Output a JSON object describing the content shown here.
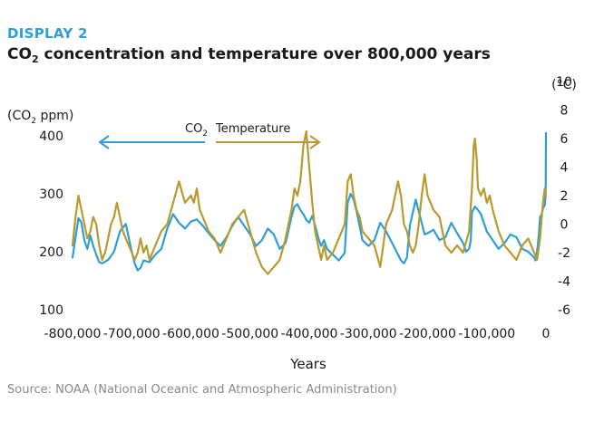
{
  "display_label": "DISPLAY 2",
  "title_parts": {
    "prefix": "CO",
    "subscript": "2",
    "suffix": " concentration and temperature over 800,000 years"
  },
  "source": "Source: NOAA (National Oceanic and Atmospheric Administration)",
  "colors": {
    "co2": "#2f9ed6",
    "temperature": "#b89a2e",
    "accent": "#2f9ed6"
  },
  "chart_data": {
    "type": "line",
    "xlabel": "Years",
    "y_left_label": {
      "prefix": "(CO",
      "subscript": "2",
      "suffix": " ppm)"
    },
    "y_right_label": "(°C)",
    "xlim": [
      -800000,
      0
    ],
    "ylim_left": [
      100,
      400
    ],
    "ylim_right": [
      -6,
      10
    ],
    "x_ticks": [
      -800000,
      -700000,
      -600000,
      -500000,
      -400000,
      -300000,
      -200000,
      -100000,
      0
    ],
    "x_tick_labels": [
      "-800,000",
      "-700,000",
      "-600,000",
      "-500,000",
      "-400,000",
      "-300,000",
      "-200,000",
      "-100,000",
      "0"
    ],
    "y_left_ticks": [
      100,
      200,
      300,
      400
    ],
    "y_right_ticks": [
      -6,
      -4,
      -2,
      0,
      2,
      4,
      6,
      8,
      10
    ],
    "legend": {
      "co2": {
        "prefix": "CO",
        "subscript": "2"
      },
      "temperature": "Temperature"
    },
    "series": [
      {
        "name": "CO2",
        "axis": "left",
        "x": [
          -800000,
          -795000,
          -790000,
          -785000,
          -780000,
          -775000,
          -770000,
          -765000,
          -760000,
          -755000,
          -750000,
          -740000,
          -730000,
          -720000,
          -710000,
          -700000,
          -695000,
          -690000,
          -685000,
          -680000,
          -670000,
          -660000,
          -650000,
          -640000,
          -630000,
          -620000,
          -610000,
          -600000,
          -590000,
          -580000,
          -570000,
          -560000,
          -550000,
          -540000,
          -530000,
          -520000,
          -510000,
          -500000,
          -490000,
          -480000,
          -470000,
          -460000,
          -450000,
          -440000,
          -430000,
          -425000,
          -420000,
          -415000,
          -410000,
          -405000,
          -400000,
          -395000,
          -390000,
          -385000,
          -380000,
          -375000,
          -370000,
          -360000,
          -350000,
          -340000,
          -335000,
          -330000,
          -325000,
          -320000,
          -310000,
          -300000,
          -290000,
          -280000,
          -270000,
          -260000,
          -250000,
          -245000,
          -240000,
          -235000,
          -230000,
          -220000,
          -215000,
          -210000,
          -205000,
          -200000,
          -190000,
          -180000,
          -170000,
          -160000,
          -150000,
          -140000,
          -135000,
          -130000,
          -127000,
          -125000,
          -120000,
          -115000,
          -110000,
          -105000,
          -100000,
          -90000,
          -80000,
          -70000,
          -60000,
          -50000,
          -40000,
          -30000,
          -25000,
          -20000,
          -18000,
          -15000,
          -12000,
          -10000,
          -7000,
          -5000,
          -2000,
          -500,
          0
        ],
        "values": [
          190,
          225,
          258,
          250,
          220,
          205,
          228,
          210,
          195,
          182,
          180,
          186,
          200,
          235,
          248,
          200,
          180,
          168,
          172,
          185,
          182,
          195,
          205,
          240,
          265,
          250,
          240,
          252,
          256,
          245,
          232,
          220,
          210,
          225,
          245,
          260,
          245,
          230,
          210,
          220,
          240,
          230,
          205,
          215,
          260,
          278,
          282,
          272,
          265,
          255,
          250,
          262,
          245,
          225,
          210,
          220,
          205,
          195,
          185,
          198,
          285,
          300,
          290,
          270,
          220,
          210,
          220,
          250,
          235,
          215,
          195,
          185,
          180,
          190,
          245,
          290,
          270,
          250,
          230,
          232,
          238,
          220,
          225,
          250,
          232,
          215,
          200,
          205,
          220,
          268,
          278,
          272,
          265,
          250,
          235,
          220,
          205,
          215,
          230,
          225,
          205,
          200,
          195,
          190,
          185,
          200,
          230,
          260,
          265,
          275,
          280,
          300,
          405
        ]
      },
      {
        "name": "Temperature",
        "axis": "right",
        "x": [
          -800000,
          -795000,
          -790000,
          -785000,
          -780000,
          -775000,
          -770000,
          -765000,
          -760000,
          -755000,
          -750000,
          -745000,
          -740000,
          -735000,
          -730000,
          -725000,
          -720000,
          -715000,
          -710000,
          -705000,
          -700000,
          -695000,
          -690000,
          -685000,
          -680000,
          -675000,
          -670000,
          -660000,
          -650000,
          -640000,
          -630000,
          -620000,
          -610000,
          -600000,
          -595000,
          -590000,
          -585000,
          -580000,
          -575000,
          -570000,
          -560000,
          -550000,
          -540000,
          -530000,
          -520000,
          -510000,
          -500000,
          -490000,
          -480000,
          -470000,
          -460000,
          -450000,
          -440000,
          -430000,
          -425000,
          -420000,
          -415000,
          -410000,
          -405000,
          -400000,
          -395000,
          -390000,
          -385000,
          -380000,
          -375000,
          -370000,
          -360000,
          -350000,
          -340000,
          -335000,
          -330000,
          -325000,
          -320000,
          -315000,
          -310000,
          -300000,
          -290000,
          -280000,
          -270000,
          -260000,
          -250000,
          -245000,
          -240000,
          -235000,
          -230000,
          -225000,
          -220000,
          -215000,
          -210000,
          -205000,
          -200000,
          -190000,
          -180000,
          -170000,
          -160000,
          -150000,
          -140000,
          -130000,
          -125000,
          -122000,
          -120000,
          -117000,
          -115000,
          -110000,
          -105000,
          -100000,
          -95000,
          -90000,
          -80000,
          -70000,
          -60000,
          -50000,
          -40000,
          -30000,
          -25000,
          -20000,
          -15000,
          -10000,
          -7000,
          -5000,
          -2000,
          0
        ],
        "values": [
          -1.5,
          0.5,
          2.0,
          1.0,
          0.0,
          -1.0,
          -0.5,
          0.5,
          0.0,
          -1.5,
          -2.5,
          -2.0,
          -1.0,
          0.0,
          0.5,
          1.5,
          0.5,
          -0.5,
          -1.0,
          -1.5,
          -2.0,
          -2.5,
          -2.0,
          -1.0,
          -2.0,
          -1.5,
          -2.5,
          -1.5,
          -0.5,
          0.0,
          1.5,
          3.0,
          1.5,
          2.0,
          1.5,
          2.5,
          1.0,
          0.5,
          0.0,
          -0.5,
          -1.0,
          -2.0,
          -1.0,
          0.0,
          0.5,
          1.0,
          -0.5,
          -2.0,
          -3.0,
          -3.5,
          -3.0,
          -2.5,
          -1.0,
          1.0,
          2.5,
          2.0,
          3.0,
          5.5,
          6.5,
          4.0,
          1.5,
          -0.5,
          -1.5,
          -2.5,
          -1.5,
          -2.5,
          -2.0,
          -1.0,
          0.0,
          3.0,
          3.5,
          2.0,
          1.0,
          0.5,
          -0.5,
          -1.0,
          -1.5,
          -3.0,
          0.0,
          1.0,
          3.0,
          2.0,
          0.0,
          -0.5,
          -1.5,
          -2.0,
          -1.5,
          0.0,
          2.0,
          3.5,
          2.0,
          1.0,
          0.5,
          -1.5,
          -2.0,
          -1.5,
          -2.0,
          -0.5,
          2.5,
          5.5,
          6.0,
          4.5,
          2.5,
          2.0,
          2.5,
          1.5,
          2.0,
          1.0,
          -0.5,
          -1.5,
          -2.0,
          -2.5,
          -1.5,
          -1.0,
          -1.5,
          -2.0,
          -2.5,
          -1.0,
          0.5,
          1.5,
          2.5,
          2.0
        ]
      }
    ]
  }
}
